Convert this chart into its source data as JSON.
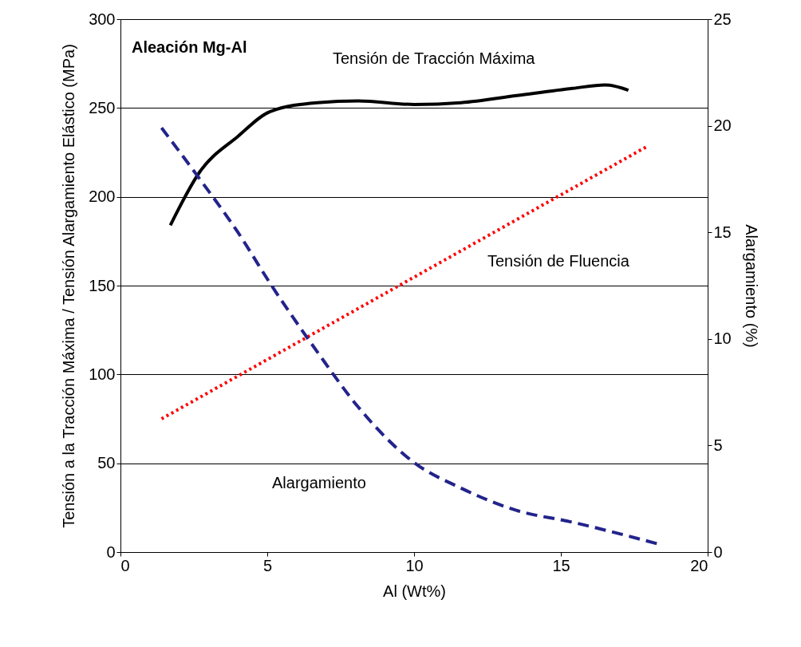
{
  "chart_data": {
    "type": "line",
    "xlabel": "Al (Wt%)",
    "ylabel": "Tensión a la Tracción Máxima / Tensión Alargamiento Elástico (MPa)",
    "y2label": "Alargamiento (%)",
    "xlim": [
      0,
      20
    ],
    "xticks": [
      0,
      5,
      10,
      15,
      20
    ],
    "ylim": [
      0,
      300
    ],
    "yticks": [
      0,
      50,
      100,
      150,
      200,
      250,
      300
    ],
    "y2lim": [
      0,
      25
    ],
    "y2ticks": [
      0,
      5,
      10,
      15,
      20,
      25
    ],
    "grid": "y",
    "series": [
      {
        "name": "Tensión de Tracción Máxima",
        "color": "#000000",
        "line_style": "solid",
        "x": [
          1.7,
          2.7,
          4.0,
          5.1,
          6.7,
          8.1,
          10.0,
          11.6,
          13.5,
          15.4,
          16.5,
          17.3
        ],
        "values": [
          184,
          214,
          234,
          248,
          253,
          254,
          252,
          253,
          257,
          261,
          263,
          260
        ]
      },
      {
        "name": "Tensión de Fluencia",
        "color": "#ff0000",
        "line_style": "dotted",
        "x": [
          1.4,
          17.9
        ],
        "values": [
          75,
          228
        ]
      },
      {
        "name": "Alargamiento",
        "color": "#23238c",
        "line_style": "dashed",
        "axis": "y2",
        "x": [
          1.4,
          2.7,
          4.0,
          5.1,
          6.7,
          8.1,
          10.0,
          11.6,
          13.5,
          15.4,
          17.3,
          18.4
        ],
        "values": [
          19.9,
          17.5,
          15.0,
          12.6,
          9.4,
          6.8,
          4.2,
          3.0,
          1.95,
          1.4,
          0.75,
          0.35
        ]
      }
    ],
    "annotations": [
      "Aleación Mg-Al"
    ]
  }
}
